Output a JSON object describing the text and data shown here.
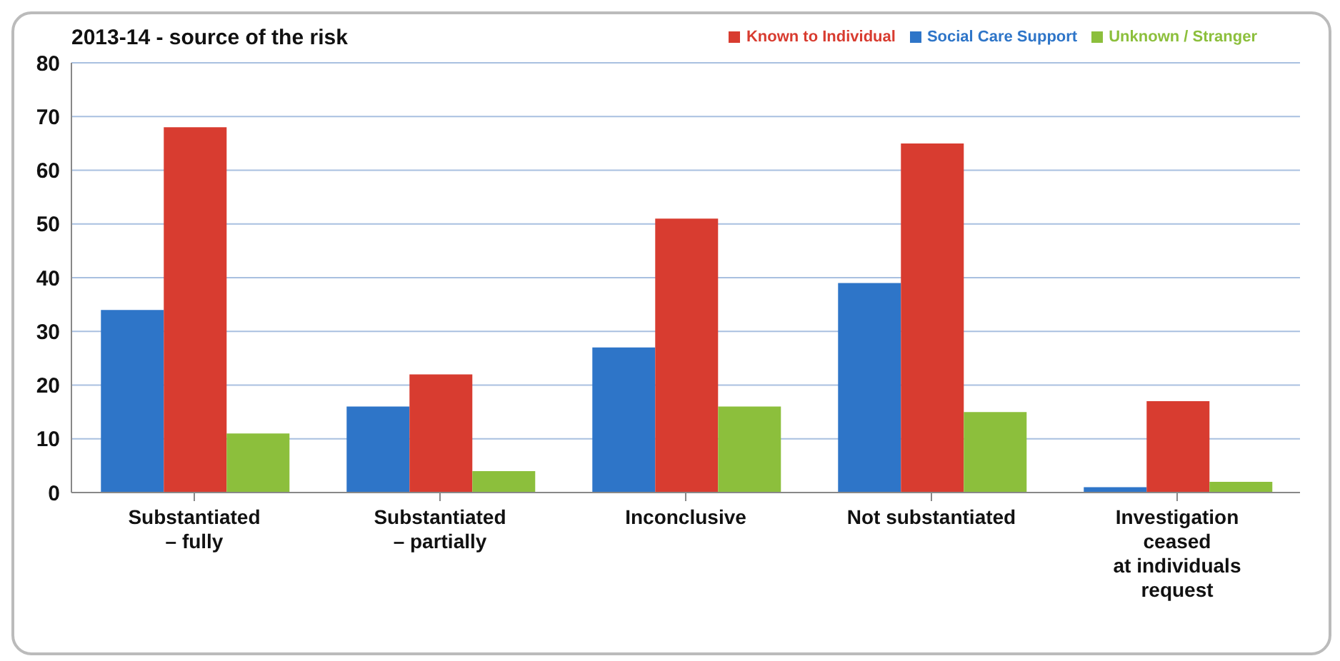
{
  "chart_data": {
    "type": "bar",
    "title": "2013-14 - source of the risk",
    "categories": [
      "Substantiated\n– fully",
      "Substantiated\n– partially",
      "Inconclusive",
      "Not substantiated",
      "Investigation\nceased\nat individuals\nrequest"
    ],
    "series": [
      {
        "name": "Social Care Support",
        "color": "#2e75c8",
        "values": [
          34,
          16,
          27,
          39,
          1
        ]
      },
      {
        "name": "Known to Individual",
        "color": "#d83c30",
        "values": [
          68,
          22,
          51,
          65,
          17
        ]
      },
      {
        "name": "Unknown / Stranger",
        "color": "#8cbf3c",
        "values": [
          11,
          4,
          16,
          15,
          2
        ]
      }
    ],
    "ylim": [
      0,
      80
    ],
    "yticks": [
      0,
      10,
      20,
      30,
      40,
      50,
      60,
      70,
      80
    ],
    "grid": "y",
    "legend": "top right"
  }
}
